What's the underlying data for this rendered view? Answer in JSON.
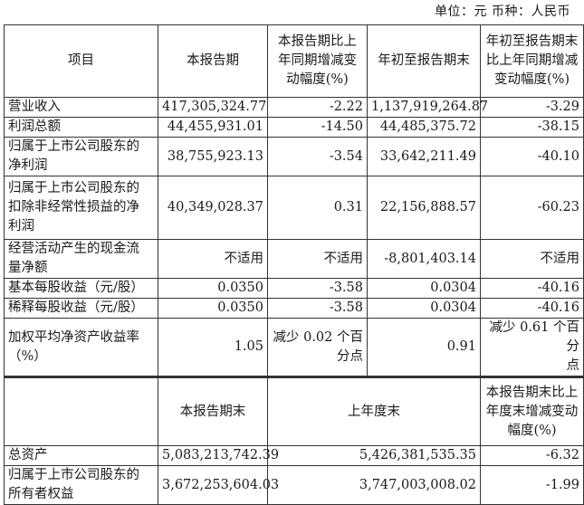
{
  "unit_note": "单位：元   币种：人民币",
  "header": [
    "项目",
    "本报告期",
    "本报告期比上\n年同期增减变\n动幅度(%)",
    "年初至报告期末",
    "年初至报告期末\n比上年同期增减\n变动幅度(%)"
  ],
  "rows": [
    [
      "营业收入",
      "417,305,324.77",
      "-2.22",
      "1,137,919,264.87",
      "-3.29"
    ],
    [
      "利润总额",
      "44,455,931.01",
      "-14.50",
      "44,485,375.72",
      "-38.15"
    ],
    [
      "归属于上市公司股东的\n净利润",
      "38,755,923.13",
      "-3.54",
      "33,642,211.49",
      "-40.10"
    ],
    [
      "归属于上市公司股东的\n扣除非经常性损益的净\n利润",
      "40,349,028.37",
      "0.31",
      "22,156,888.57",
      "-60.23"
    ],
    [
      "经营活动产生的现金流\n量净额",
      "不适用",
      "不适用",
      "-8,801,403.14",
      "不适用"
    ],
    [
      "基本每股收益（元/股）",
      "0.0350",
      "-3.58",
      "0.0304",
      "-40.16"
    ],
    [
      "稀释每股收益（元/股）",
      "0.0350",
      "-3.58",
      "0.0304",
      "-40.16"
    ],
    [
      "加权平均净资产收益率\n（%）",
      "1.05",
      "减少 0.02 个百\n分点",
      "0.91",
      "减少 0.61 个百分\n点"
    ]
  ],
  "header2": [
    "",
    "本报告期末",
    "上年度末",
    "本报告期末比上\n年度末增减变动\n幅度(%)"
  ],
  "rows2": [
    [
      "总资产",
      "5,083,213,742.39",
      "5,426,381,535.35",
      "-6.32"
    ],
    [
      "归属于上市公司股东的\n所有者权益",
      "3,672,253,604.03",
      "3,747,003,008.02",
      "-1.99"
    ]
  ]
}
